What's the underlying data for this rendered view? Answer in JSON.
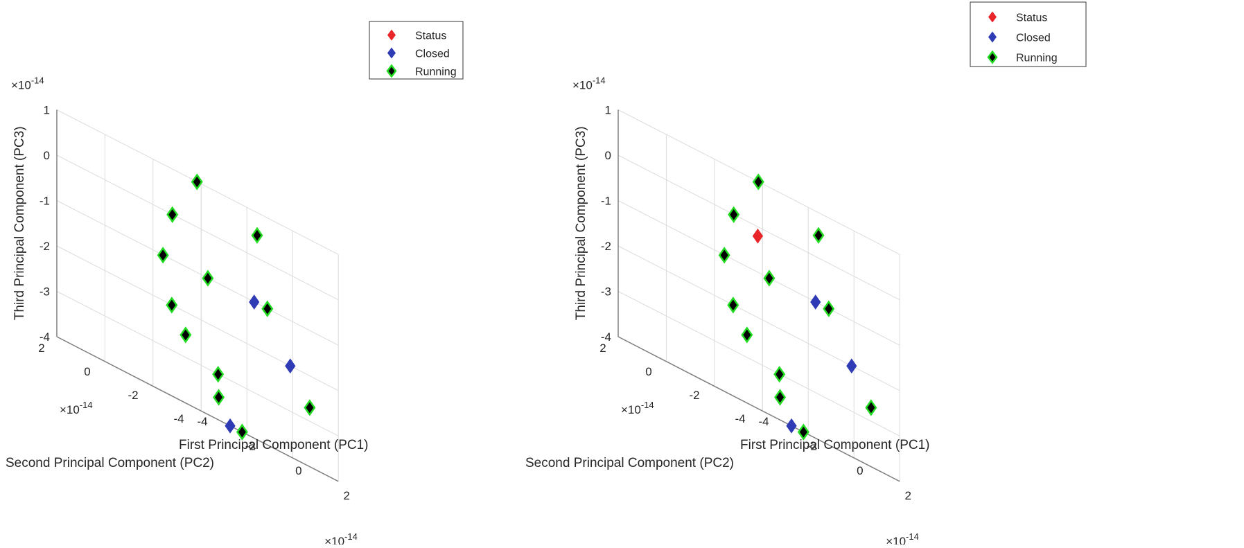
{
  "chart_data": [
    {
      "type": "scatter3d",
      "title": "",
      "xlabel": "First Principal Component (PC1)",
      "ylabel": "Second Principal Component (PC2)",
      "zlabel": "Third Principal Component (PC3)",
      "x_exponent": "x10^-14",
      "y_exponent": "x10^-14",
      "z_exponent": "x10^-14",
      "xlim": [
        -4,
        2
      ],
      "ylim": [
        -4,
        2
      ],
      "zlim": [
        -4,
        1
      ],
      "x_ticks": [
        "-4",
        "-2",
        "0",
        "2"
      ],
      "y_ticks": [
        "-4",
        "-2",
        "0",
        "2"
      ],
      "z_ticks": [
        "-4",
        "-3",
        "-2",
        "-1",
        "0",
        "1"
      ],
      "grid": true,
      "legend_position": "top-right",
      "series": [
        {
          "name": "Status",
          "color": "#e8262a",
          "points": []
        },
        {
          "name": "Closed",
          "color": "#2f3bb4",
          "points": [
            {
              "x": -1.5,
              "y": -4,
              "z": -1
            },
            {
              "x": 0,
              "y": -4,
              "z": -2
            },
            {
              "x": -2.5,
              "y": -4,
              "z": -4
            }
          ]
        },
        {
          "name": "Running",
          "color": "#000000",
          "points": [
            {
              "x": -1.5,
              "y": -1.5,
              "z": 1
            },
            {
              "x": 1,
              "y": -1.5,
              "z": 0.5
            },
            {
              "x": -3,
              "y": -2,
              "z": 0
            },
            {
              "x": -3.5,
              "y": -2.5,
              "z": -2
            },
            {
              "x": -3.2,
              "y": -1.8,
              "z": -1
            },
            {
              "x": -2,
              "y": -2.5,
              "z": -1
            },
            {
              "x": 0,
              "y": -3,
              "z": -1
            },
            {
              "x": -3.4,
              "y": -3,
              "z": -2.5
            },
            {
              "x": -3,
              "y": -4,
              "z": -3
            },
            {
              "x": -2.5,
              "y": -3.5,
              "z": -3.5
            },
            {
              "x": 1,
              "y": -3.8,
              "z": -2.7
            },
            {
              "x": -2,
              "y": -4,
              "z": -4
            }
          ]
        }
      ]
    },
    {
      "type": "scatter3d",
      "title": "",
      "xlabel": "First Principal Component (PC1)",
      "ylabel": "Second Principal Component (PC2)",
      "zlabel": "Third Principal Component (PC3)",
      "x_exponent": "x10^-14",
      "y_exponent": "x10^-14",
      "z_exponent": "x10^-14",
      "xlim": [
        -4,
        2
      ],
      "ylim": [
        -4,
        2
      ],
      "zlim": [
        -4,
        1
      ],
      "x_ticks": [
        "-4",
        "-2",
        "0",
        "2"
      ],
      "y_ticks": [
        "-4",
        "-2",
        "0",
        "2"
      ],
      "z_ticks": [
        "-4",
        "-3",
        "-2",
        "-1",
        "0",
        "1"
      ],
      "grid": true,
      "legend_position": "top-right",
      "series": [
        {
          "name": "Status",
          "color": "#e8262a",
          "points": [
            {
              "x": -2,
              "y": -2,
              "z": -0.2
            }
          ]
        },
        {
          "name": "Closed",
          "color": "#2f3bb4",
          "points": [
            {
              "x": -1.5,
              "y": -4,
              "z": -1
            },
            {
              "x": 0,
              "y": -4,
              "z": -2
            },
            {
              "x": -2.5,
              "y": -4,
              "z": -4
            }
          ]
        },
        {
          "name": "Running",
          "color": "#000000",
          "points": [
            {
              "x": -1.5,
              "y": -1.5,
              "z": 1
            },
            {
              "x": 1,
              "y": -1.5,
              "z": 0.5
            },
            {
              "x": -3,
              "y": -2,
              "z": 0
            },
            {
              "x": -3.5,
              "y": -2.5,
              "z": -2
            },
            {
              "x": -3.2,
              "y": -1.8,
              "z": -1
            },
            {
              "x": -2,
              "y": -2.5,
              "z": -1
            },
            {
              "x": 0,
              "y": -3,
              "z": -1
            },
            {
              "x": -3.4,
              "y": -3,
              "z": -2.5
            },
            {
              "x": -3,
              "y": -4,
              "z": -3
            },
            {
              "x": -2.5,
              "y": -3.5,
              "z": -3.5
            },
            {
              "x": 1,
              "y": -3.8,
              "z": -2.7
            },
            {
              "x": -2,
              "y": -4,
              "z": -4
            }
          ]
        }
      ]
    }
  ],
  "legend_entries": [
    "Status",
    "Closed",
    "Running"
  ],
  "exponent_label": "×10",
  "exponent_power": "-14"
}
